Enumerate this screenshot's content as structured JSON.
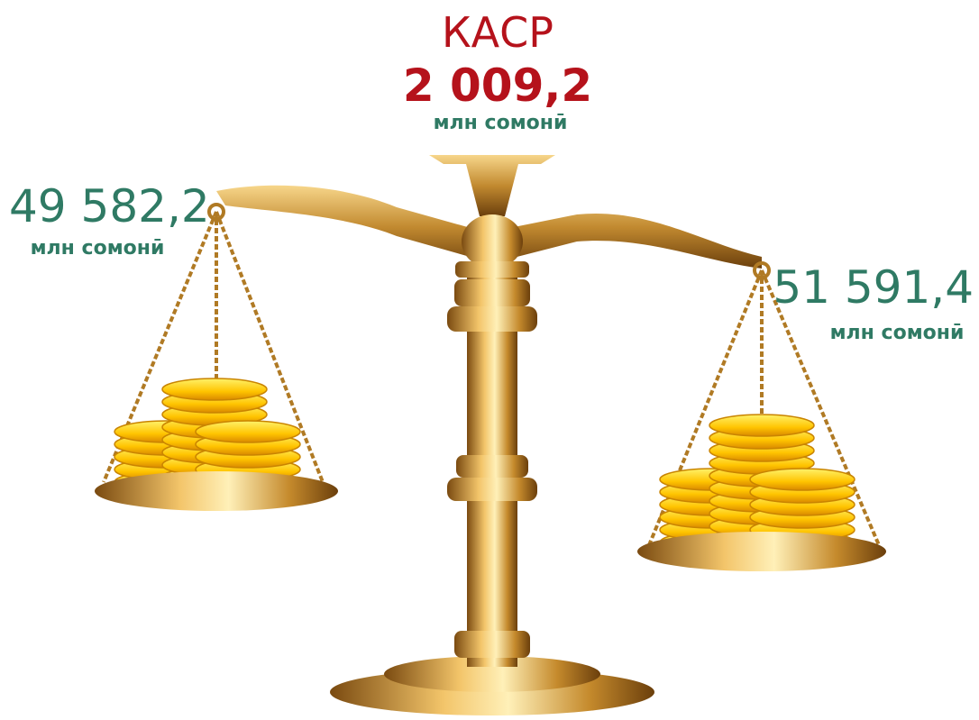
{
  "center": {
    "label": "КАСР",
    "value": "2 009,2",
    "unit": "млн сомонӣ"
  },
  "left": {
    "value": "49 582,2",
    "unit": "млн сомонӣ"
  },
  "right": {
    "value": "51 591,4",
    "unit": "млн сомонӣ"
  }
}
